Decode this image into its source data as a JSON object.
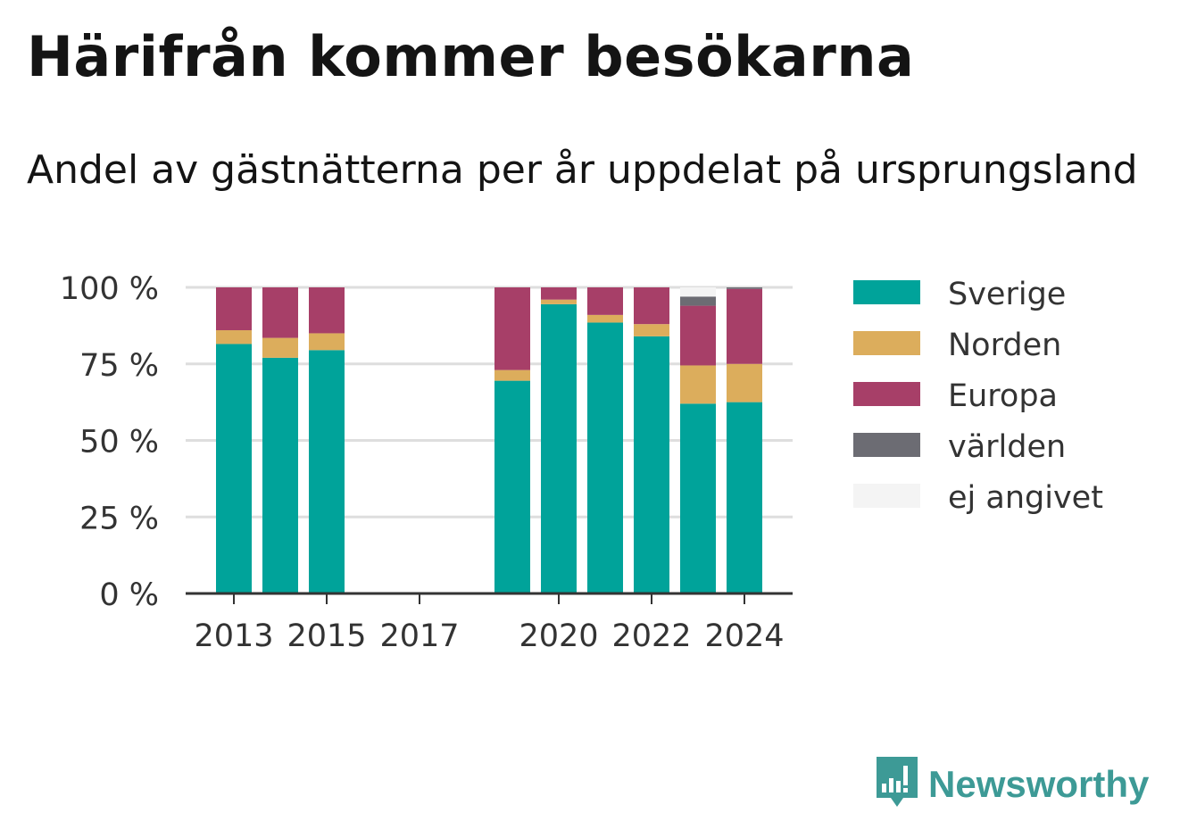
{
  "title": "Härifrån kommer besökarna",
  "subtitle": "Andel av gästnätterna per år uppdelat på ursprungsland",
  "brand": {
    "name": "Newsworthy",
    "icon": "newsworthy-logo-icon",
    "color": "#3d9a96"
  },
  "chart_data": {
    "type": "bar",
    "stacked": true,
    "x": [
      2013,
      2014,
      2015,
      2016,
      2017,
      2018,
      2019,
      2020,
      2021,
      2022,
      2023,
      2024
    ],
    "x_tick_labels": [
      "2013",
      "2015",
      "2017",
      "2020",
      "2022",
      "2024"
    ],
    "x_tick_values": [
      2013,
      2015,
      2017,
      2020,
      2022,
      2024
    ],
    "y_tick_labels": [
      "0 %",
      "25 %",
      "50 %",
      "75 %",
      "100 %"
    ],
    "y_tick_values": [
      0,
      25,
      50,
      75,
      100
    ],
    "ylim": [
      0,
      100
    ],
    "grid": true,
    "legend_position": "right",
    "series": [
      {
        "name": "Sverige",
        "color": "#00a39a",
        "values": [
          81.5,
          77,
          79.5,
          null,
          null,
          null,
          69.5,
          94.5,
          88.5,
          84,
          62,
          62.5
        ]
      },
      {
        "name": "Norden",
        "color": "#dcad5c",
        "values": [
          4.5,
          6.5,
          5.5,
          null,
          null,
          null,
          3.5,
          1.5,
          2.5,
          4,
          12.5,
          12.5
        ]
      },
      {
        "name": "Europa",
        "color": "#a73f68",
        "values": [
          14,
          16.5,
          15,
          null,
          null,
          null,
          27,
          4,
          9,
          12,
          19.5,
          24.5
        ]
      },
      {
        "name": "världen",
        "color": "#6c6c73",
        "values": [
          0,
          0,
          0,
          null,
          null,
          null,
          0,
          0,
          0,
          0,
          3,
          0.5
        ]
      },
      {
        "name": "ej angivet",
        "color": "#f4f4f4",
        "values": [
          0,
          0,
          0,
          null,
          null,
          null,
          0,
          0,
          0,
          0,
          3,
          0
        ]
      }
    ]
  }
}
